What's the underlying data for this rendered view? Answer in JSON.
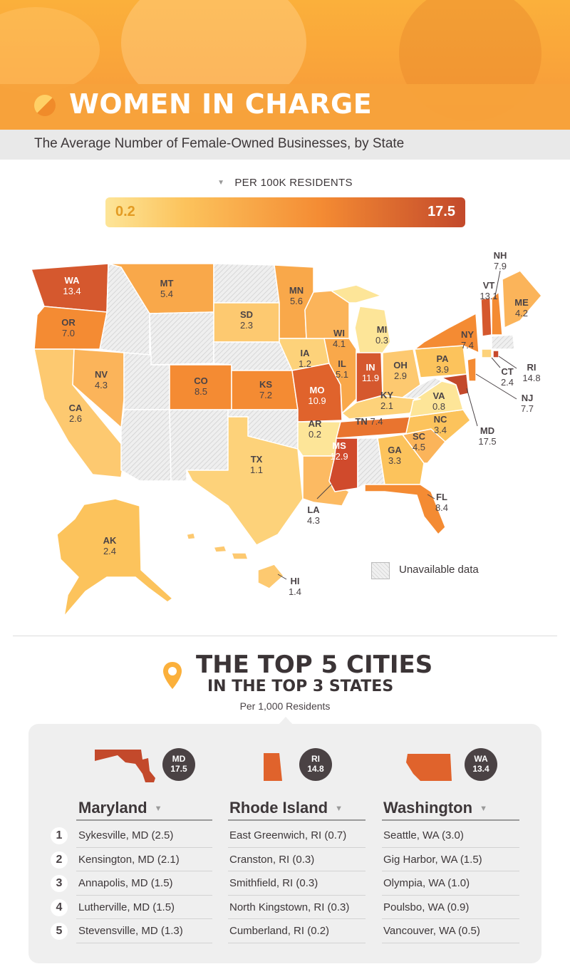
{
  "header": {
    "title": "WOMEN IN CHARGE",
    "subtitle": "The Average Number of Female-Owned Businesses, by State"
  },
  "legend": {
    "label": "PER 100K RESIDENTS",
    "min": "0.2",
    "max": "17.5",
    "unavailable_label": "Unavailable data"
  },
  "colors": {
    "low": "#fde598",
    "high": "#c3492b",
    "orange": "#f48b33",
    "unavailable": "#e2e2e2"
  },
  "states": [
    {
      "abbr": "WA",
      "value": "13.4"
    },
    {
      "abbr": "OR",
      "value": "7.0"
    },
    {
      "abbr": "CA",
      "value": "2.6"
    },
    {
      "abbr": "NV",
      "value": "4.3"
    },
    {
      "abbr": "MT",
      "value": "5.4"
    },
    {
      "abbr": "CO",
      "value": "8.5"
    },
    {
      "abbr": "SD",
      "value": "2.3"
    },
    {
      "abbr": "KS",
      "value": "7.2"
    },
    {
      "abbr": "TX",
      "value": "1.1"
    },
    {
      "abbr": "MN",
      "value": "5.6"
    },
    {
      "abbr": "IA",
      "value": "1.2"
    },
    {
      "abbr": "MO",
      "value": "10.9"
    },
    {
      "abbr": "AR",
      "value": "0.2"
    },
    {
      "abbr": "LA",
      "value": "4.3"
    },
    {
      "abbr": "WI",
      "value": "4.1"
    },
    {
      "abbr": "IL",
      "value": "5.1"
    },
    {
      "abbr": "MI",
      "value": "0.3"
    },
    {
      "abbr": "IN",
      "value": "11.9"
    },
    {
      "abbr": "OH",
      "value": "2.9"
    },
    {
      "abbr": "KY",
      "value": "2.1"
    },
    {
      "abbr": "TN",
      "value": "7.4"
    },
    {
      "abbr": "MS",
      "value": "12.9"
    },
    {
      "abbr": "GA",
      "value": "3.3"
    },
    {
      "abbr": "FL",
      "value": "8.4"
    },
    {
      "abbr": "SC",
      "value": "4.5"
    },
    {
      "abbr": "NC",
      "value": "3.4"
    },
    {
      "abbr": "VA",
      "value": "0.8"
    },
    {
      "abbr": "PA",
      "value": "3.9"
    },
    {
      "abbr": "NY",
      "value": "7.4"
    },
    {
      "abbr": "NH",
      "value": "7.9"
    },
    {
      "abbr": "VT",
      "value": "13.1"
    },
    {
      "abbr": "ME",
      "value": "4.2"
    },
    {
      "abbr": "RI",
      "value": "14.8"
    },
    {
      "abbr": "CT",
      "value": "2.4"
    },
    {
      "abbr": "NJ",
      "value": "7.7"
    },
    {
      "abbr": "MD",
      "value": "17.5"
    },
    {
      "abbr": "AK",
      "value": "2.4"
    },
    {
      "abbr": "HI",
      "value": "1.4"
    }
  ],
  "top_cities": {
    "title_line1": "THE TOP 5 CITIES",
    "title_line2": "IN THE TOP 3 STATES",
    "per_label": "Per 1,000 Residents",
    "ranks": [
      "1",
      "2",
      "3",
      "4",
      "5"
    ],
    "columns": [
      {
        "badge_abbr": "MD",
        "badge_value": "17.5",
        "state": "Maryland",
        "cities": [
          "Sykesville, MD (2.5)",
          "Kensington, MD (2.1)",
          "Annapolis, MD (1.5)",
          "Lutherville, MD (1.5)",
          "Stevensville, MD (1.3)"
        ]
      },
      {
        "badge_abbr": "RI",
        "badge_value": "14.8",
        "state": "Rhode Island",
        "cities": [
          "East Greenwich, RI (0.7)",
          "Cranston, RI (0.3)",
          "Smithfield, RI (0.3)",
          "North Kingstown, RI (0.3)",
          "Cumberland, RI (0.2)"
        ]
      },
      {
        "badge_abbr": "WA",
        "badge_value": "13.4",
        "state": "Washington",
        "cities": [
          "Seattle, WA (3.0)",
          "Gig Harbor, WA (1.5)",
          "Olympia, WA (1.0)",
          "Poulsbo, WA (0.9)",
          "Vancouver, WA (0.5)"
        ]
      }
    ]
  }
}
